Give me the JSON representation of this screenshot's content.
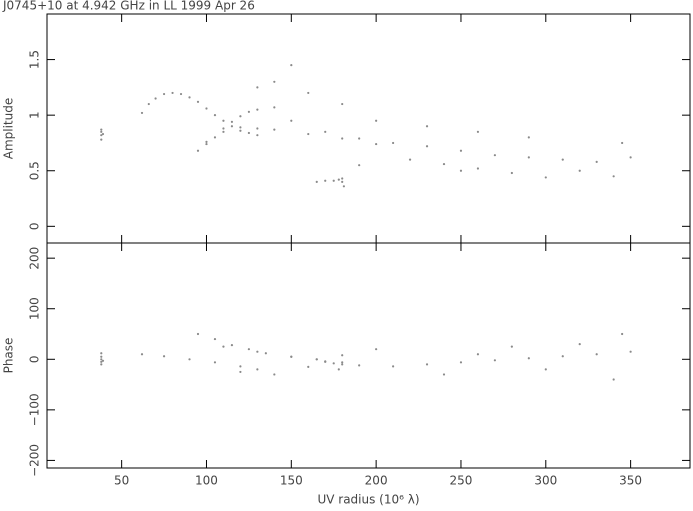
{
  "chart_data": [
    {
      "type": "scatter",
      "title": "J0745+10 at 4.942 GHz in LL  1999 Apr 26",
      "y_label": "Amplitude",
      "xlim": [
        6,
        385
      ],
      "xticks": [
        50,
        100,
        150,
        200,
        250,
        300,
        350
      ],
      "ylim": [
        -0.15,
        1.91
      ],
      "yticks": [
        0,
        0.5,
        1,
        1.5
      ],
      "series": [
        {
          "color": "#8a8a8a",
          "x": [
            38,
            38,
            38,
            38,
            39,
            62,
            66,
            70,
            75,
            80,
            85,
            90,
            95,
            100,
            105,
            110,
            115,
            120,
            125,
            130,
            95,
            100,
            105,
            110,
            115,
            120,
            125,
            130,
            140,
            100,
            110,
            120,
            130,
            140,
            160,
            180,
            200,
            220,
            240,
            260,
            280,
            300,
            150,
            170,
            190,
            210,
            230,
            250,
            270,
            290,
            310,
            330,
            350,
            165,
            170,
            175,
            178,
            180,
            181,
            180,
            140,
            150,
            160,
            180,
            200,
            230,
            260,
            290,
            320,
            340,
            345,
            130,
            190,
            250
          ],
          "values": [
            0.78,
            0.82,
            0.85,
            0.87,
            0.83,
            1.02,
            1.1,
            1.15,
            1.19,
            1.2,
            1.19,
            1.16,
            1.12,
            1.06,
            1.0,
            0.95,
            0.9,
            0.86,
            0.84,
            0.82,
            0.68,
            0.74,
            0.8,
            0.88,
            0.94,
            0.99,
            1.03,
            1.05,
            1.07,
            0.76,
            0.85,
            0.89,
            0.88,
            0.87,
            0.83,
            0.79,
            0.74,
            0.6,
            0.56,
            0.52,
            0.48,
            0.44,
            0.95,
            0.85,
            0.79,
            0.75,
            0.72,
            0.68,
            0.64,
            0.62,
            0.6,
            0.58,
            0.62,
            0.4,
            0.41,
            0.41,
            0.42,
            0.43,
            0.36,
            0.4,
            1.3,
            1.45,
            1.2,
            1.1,
            0.95,
            0.9,
            0.85,
            0.8,
            0.5,
            0.45,
            0.75,
            1.25,
            0.55,
            0.5
          ]
        }
      ]
    },
    {
      "type": "scatter",
      "y_label": "Phase",
      "x_label": "UV radius  (10⁶ λ)",
      "xlim": [
        6,
        385
      ],
      "xticks": [
        50,
        100,
        150,
        200,
        250,
        300,
        350
      ],
      "ylim": [
        -215,
        230
      ],
      "yticks": [
        {
          "value": -200,
          "label": "−200"
        },
        {
          "value": -100,
          "label": "−100"
        },
        0,
        100,
        200
      ],
      "series": [
        {
          "color": "#8a8a8a",
          "x": [
            38,
            38,
            38,
            38,
            38,
            39,
            62,
            75,
            90,
            105,
            120,
            130,
            95,
            105,
            115,
            125,
            135,
            150,
            165,
            180,
            110,
            130,
            150,
            170,
            190,
            210,
            230,
            250,
            270,
            290,
            310,
            330,
            350,
            165,
            170,
            175,
            180,
            178,
            180,
            120,
            140,
            160,
            200,
            240,
            280,
            320,
            340,
            345,
            260,
            300
          ],
          "values": [
            -10,
            -5,
            0,
            5,
            12,
            -3,
            10,
            6,
            0,
            -6,
            -14,
            -20,
            50,
            40,
            28,
            20,
            12,
            5,
            0,
            -6,
            25,
            15,
            5,
            -5,
            -12,
            -14,
            -10,
            -6,
            -2,
            2,
            6,
            10,
            15,
            0,
            -4,
            -8,
            -10,
            -20,
            8,
            -25,
            -30,
            -15,
            20,
            -30,
            25,
            30,
            -40,
            50,
            10,
            -20
          ]
        }
      ]
    }
  ]
}
